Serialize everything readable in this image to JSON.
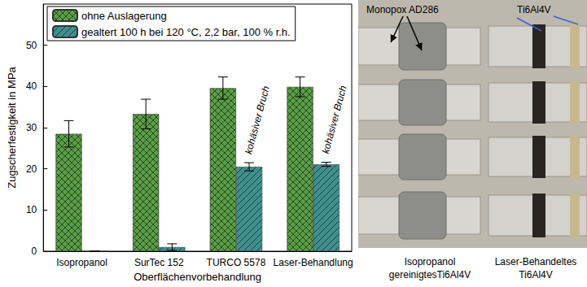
{
  "chart_data": {
    "type": "bar",
    "categories": [
      "Isopropanol",
      "SurTec 152",
      "TURCO 5578",
      "Laser-Behandlung"
    ],
    "series": [
      {
        "name": "ohne Auslagerung",
        "color": "#5a9e46",
        "values": [
          28.5,
          33.3,
          39.6,
          39.9
        ],
        "errors": [
          3.2,
          3.6,
          2.7,
          2.4
        ]
      },
      {
        "name": "gealtert 100 h bei 120 °C, 2,2 bar, 100 % r.h.",
        "color": "#3f8f8f",
        "values": [
          0,
          1.0,
          20.5,
          21.1
        ],
        "errors": [
          0,
          0.8,
          1.0,
          0.5
        ]
      }
    ],
    "x_label": "Oberflächenvorbehandlung",
    "y_label": "Zugscherfestigkeit in MPa",
    "ylim": [
      0,
      60
    ],
    "yticks": [
      0,
      10,
      20,
      30,
      40,
      50
    ],
    "grid": false,
    "legend": "upper left",
    "annotations": [
      {
        "text": "kohäsiver Bruch",
        "category": "TURCO 5578",
        "series": "gealtert 100 h bei 120 °C, 2,2 bar, 100 % r.h."
      },
      {
        "text": "kohäsiver Bruch",
        "category": "Laser-Behandlung",
        "series": "gealtert 100 h bei 120 °C, 2,2 bar, 100 % r.h."
      }
    ]
  },
  "photo": {
    "adhesive_label": "Monopox AD286",
    "substrate_label": "Ti6Al4V",
    "left_caption": [
      "Isopropanol",
      "gereinigtesTi6Al4V"
    ],
    "right_caption": [
      "Laser-Behandeltes",
      "Ti6Al4V"
    ]
  }
}
